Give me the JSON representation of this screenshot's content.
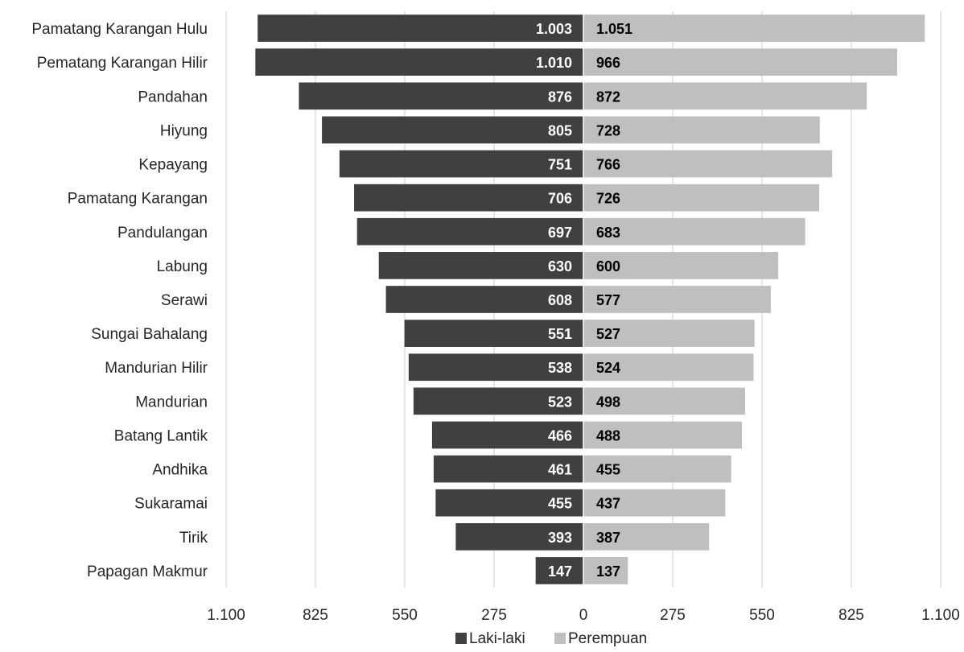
{
  "chart_data": {
    "type": "bar",
    "orientation": "horizontal-diverging",
    "categories": [
      "Pamatang Karangan Hulu",
      "Pematang Karangan Hilir",
      "Pandahan",
      "Hiyung",
      "Kepayang",
      "Pamatang Karangan",
      "Pandulangan",
      "Labung",
      "Serawi",
      "Sungai Bahalang",
      "Mandurian Hilir",
      "Mandurian",
      "Batang Lantik",
      "Andhika",
      "Sukaramai",
      "Tirik",
      "Papagan Makmur"
    ],
    "series": [
      {
        "name": "Laki-laki",
        "color": "#404040",
        "side": "left",
        "values": [
          1003,
          1010,
          876,
          805,
          751,
          706,
          697,
          630,
          608,
          551,
          538,
          523,
          466,
          461,
          455,
          393,
          147
        ],
        "labels": [
          "1.003",
          "1.010",
          "876",
          "805",
          "751",
          "706",
          "697",
          "630",
          "608",
          "551",
          "538",
          "523",
          "466",
          "461",
          "455",
          "393",
          "147"
        ]
      },
      {
        "name": "Perempuan",
        "color": "#bfbfbf",
        "side": "right",
        "values": [
          1051,
          966,
          872,
          728,
          766,
          726,
          683,
          600,
          577,
          527,
          524,
          498,
          488,
          455,
          437,
          387,
          137
        ],
        "labels": [
          "1.051",
          "966",
          "872",
          "728",
          "766",
          "726",
          "683",
          "600",
          "577",
          "527",
          "524",
          "498",
          "488",
          "455",
          "437",
          "387",
          "137"
        ]
      }
    ],
    "xlim": [
      -1100,
      1100
    ],
    "xticks": [
      -1100,
      -825,
      -550,
      -275,
      0,
      275,
      550,
      825,
      1100
    ],
    "xtick_labels": [
      "1.100",
      "825",
      "550",
      "275",
      "0",
      "275",
      "550",
      "825",
      "1.100"
    ],
    "title": "",
    "xlabel": "",
    "ylabel": "",
    "grid": "vertical",
    "legend": "bottom"
  }
}
